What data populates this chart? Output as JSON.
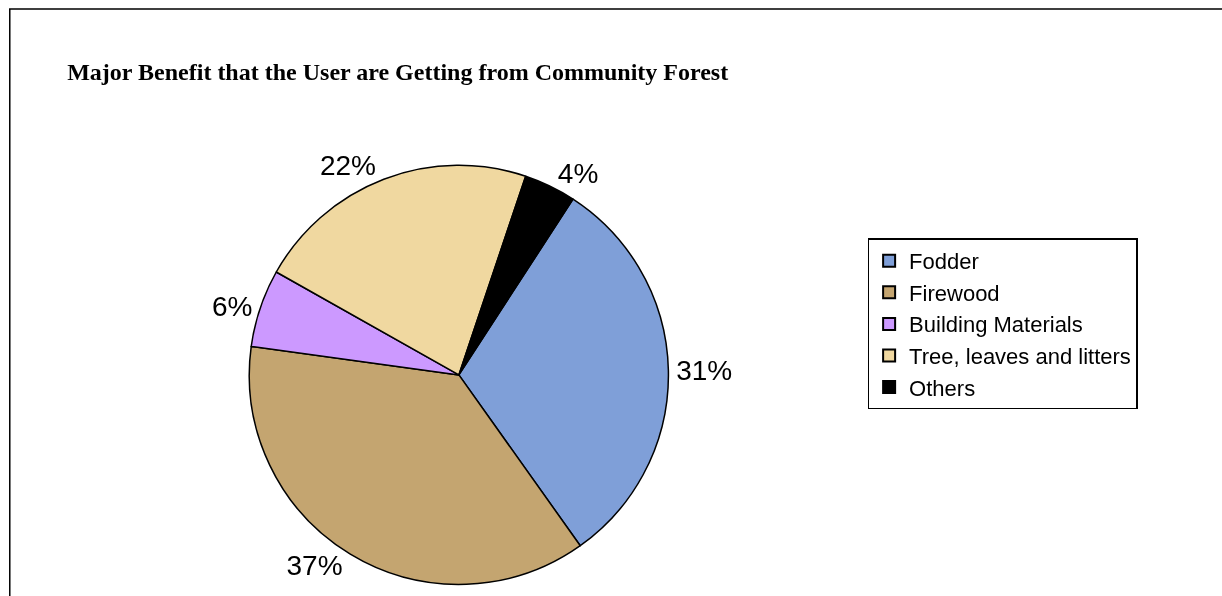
{
  "chart_data": {
    "type": "pie",
    "title": "Major Benefit that the User are Getting from Community Forest",
    "categories": [
      "Fodder",
      "Firewood",
      "Building Materials",
      "Tree, leaves and litters",
      "Others"
    ],
    "values": [
      31,
      37,
      6,
      22,
      4
    ],
    "value_labels": [
      "31%",
      "37%",
      "6%",
      "22%",
      "4%"
    ],
    "colors": [
      "#7f9fd8",
      "#c4a570",
      "#cc99ff",
      "#f0d8a0",
      "#000000"
    ],
    "legend": "right"
  }
}
